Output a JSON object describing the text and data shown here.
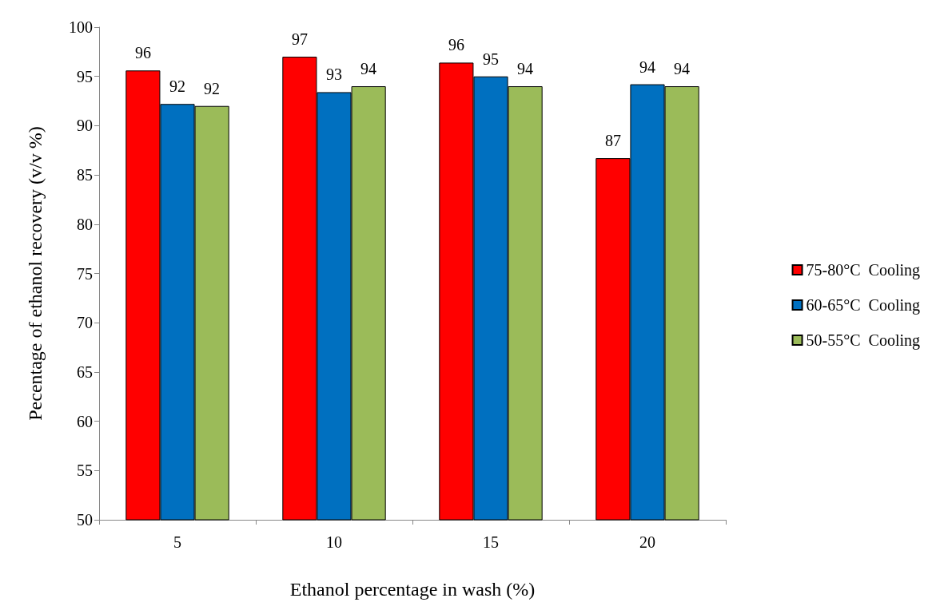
{
  "chart_data": {
    "type": "bar",
    "xlabel": "Ethanol percentage in wash (%)",
    "ylabel": "Pecentage of ethanol recovery (v/v %)",
    "categories": [
      "5",
      "10",
      "15",
      "20"
    ],
    "series": [
      {
        "name": "75-80°C  Cooling",
        "color": "#ff0000",
        "values": [
          95.6,
          97.0,
          96.4,
          86.7
        ],
        "value_labels": [
          "96",
          "97",
          "96",
          "87"
        ]
      },
      {
        "name": "60-65°C  Cooling",
        "color": "#0070c0",
        "values": [
          92.2,
          93.4,
          95.0,
          94.2
        ],
        "value_labels": [
          "92",
          "93",
          "95",
          "94"
        ]
      },
      {
        "name": "50-55°C  Cooling",
        "color": "#9bbb59",
        "values": [
          92.0,
          94.0,
          94.0,
          94.0
        ],
        "value_labels": [
          "92",
          "94",
          "94",
          "94"
        ]
      }
    ],
    "ylim": [
      50,
      100
    ],
    "yticks": [
      50,
      55,
      60,
      65,
      70,
      75,
      80,
      85,
      90,
      95,
      100
    ],
    "grid": false,
    "legend": "right"
  }
}
